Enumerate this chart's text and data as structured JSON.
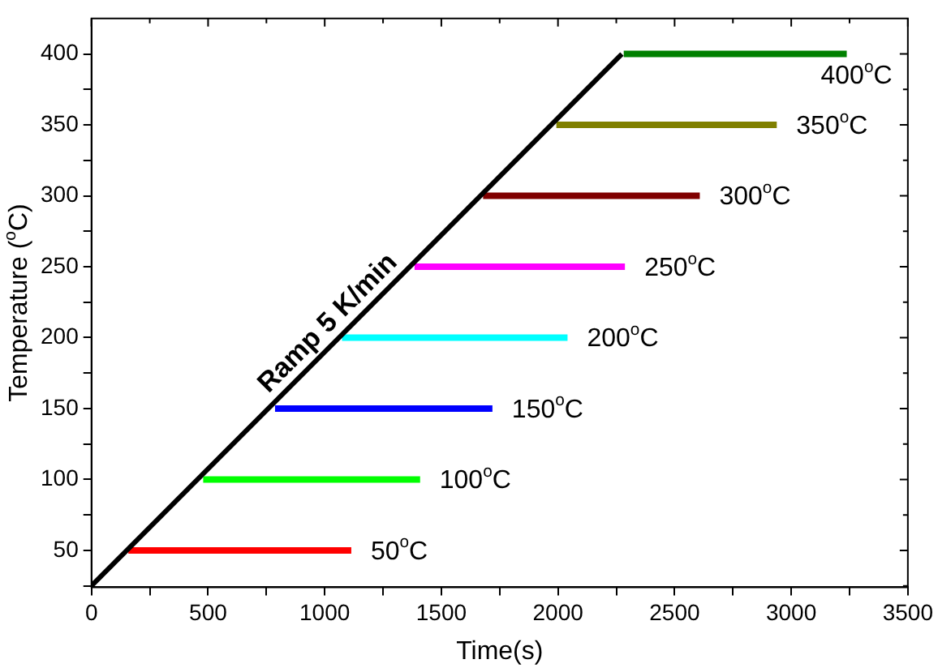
{
  "chart_data": {
    "type": "line",
    "xlabel": "Time(s)",
    "ylabel": "Temperature ($^{o}$C)",
    "xlim": [
      0,
      3500
    ],
    "ylim": [
      24,
      425
    ],
    "xticks": [
      0,
      {
        "value": 250,
        "label": null
      },
      500,
      {
        "value": 750,
        "label": null
      },
      1000,
      {
        "value": 1250,
        "label": null
      },
      1500,
      {
        "value": 1750,
        "label": null
      },
      2000,
      {
        "value": 2250,
        "label": null
      },
      2500,
      {
        "value": 2750,
        "label": null
      },
      3000,
      {
        "value": 3250,
        "label": null
      },
      3500
    ],
    "yticks": [
      {
        "value": 25,
        "label": null
      },
      50,
      {
        "value": 75,
        "label": null
      },
      100,
      {
        "value": 125,
        "label": null
      },
      150,
      {
        "value": 175,
        "label": null
      },
      200,
      {
        "value": 225,
        "label": null
      },
      250,
      {
        "value": 275,
        "label": null
      },
      300,
      {
        "value": 325,
        "label": null
      },
      350,
      {
        "value": 375,
        "label": null
      },
      400
    ],
    "grid": false,
    "legend": false,
    "marker": "none",
    "line_style": "solid",
    "series": [
      {
        "color": "#000000",
        "x": [
          0,
          2274
        ],
        "values": [
          25,
          400
        ]
      },
      {
        "color": "#ff0000",
        "x": [
          158,
          1114
        ],
        "values": [
          50,
          50
        ]
      },
      {
        "color": "#00ff00",
        "x": [
          479,
          1409
        ],
        "values": [
          100,
          100
        ]
      },
      {
        "color": "#0000ff",
        "x": [
          787,
          1719
        ],
        "values": [
          150,
          150
        ]
      },
      {
        "color": "#00ffff",
        "x": [
          1074,
          2041
        ],
        "values": [
          200,
          200
        ]
      },
      {
        "color": "#ff00ff",
        "x": [
          1385,
          2287
        ],
        "values": [
          250,
          250
        ]
      },
      {
        "color": "#800000",
        "x": [
          1679,
          2608
        ],
        "values": [
          300,
          300
        ]
      },
      {
        "color": "#808000",
        "x": [
          1993,
          2938
        ],
        "values": [
          350,
          350
        ]
      },
      {
        "color": "#008000",
        "x": [
          2282,
          3238
        ],
        "values": [
          400,
          400
        ]
      }
    ],
    "annotations": [
      "Ramp 5 K/min",
      "50$^{o}$C",
      "100$^{o}$C",
      "150$^{o}$C",
      "200$^{o}$C",
      "250$^{o}$C",
      "300$^{o}$C",
      "350$^{o}$C",
      "400$^{o}$C"
    ]
  }
}
